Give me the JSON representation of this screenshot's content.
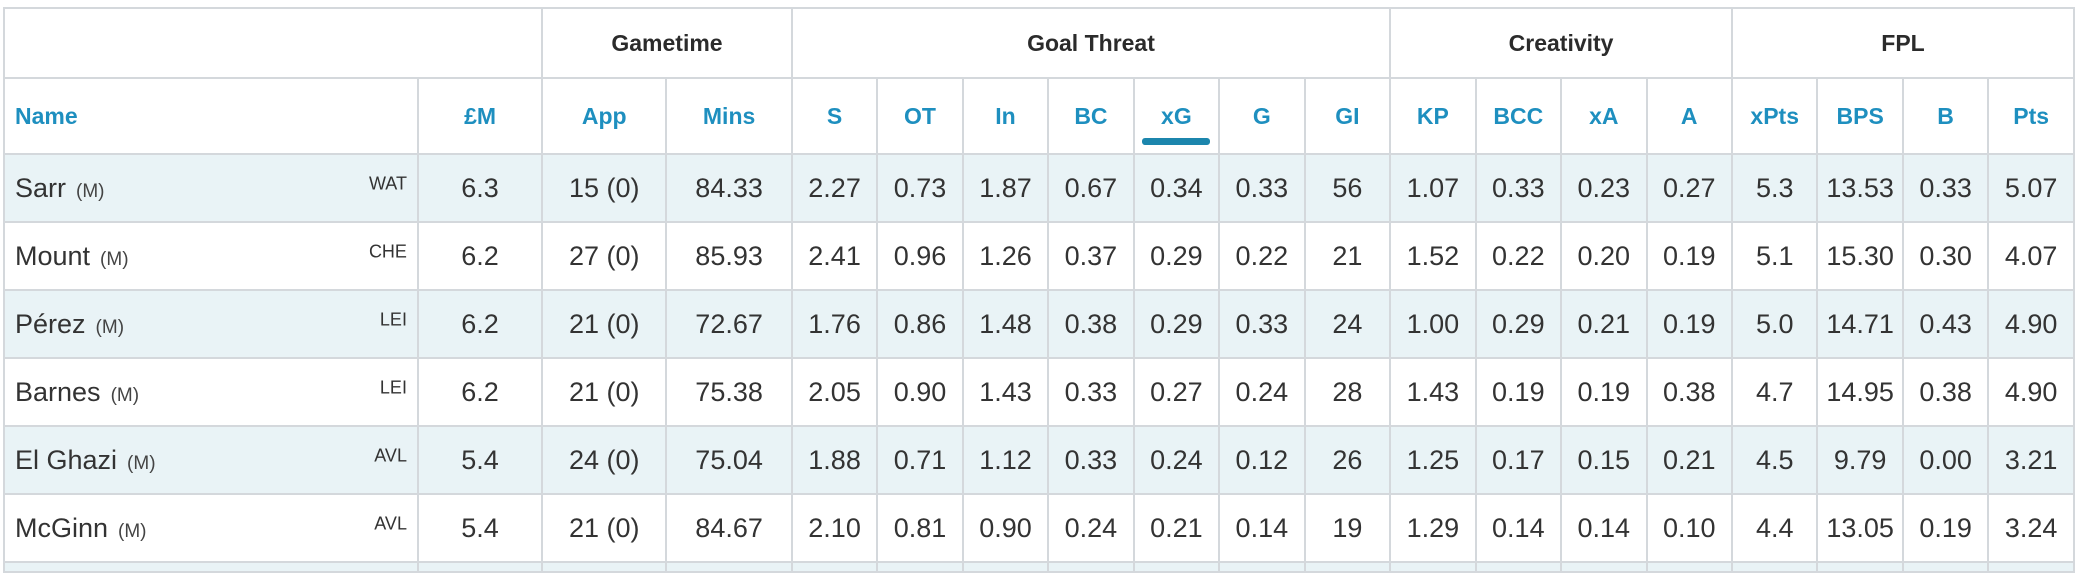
{
  "groups": {
    "blank": "",
    "gametime": "Gametime",
    "goal_threat": "Goal Threat",
    "creativity": "Creativity",
    "fpl": "FPL"
  },
  "columns": {
    "name": "Name",
    "price": "£M",
    "app": "App",
    "mins": "Mins",
    "s": "S",
    "ot": "OT",
    "in": "In",
    "bc": "BC",
    "xg": "xG",
    "g": "G",
    "gi": "GI",
    "kp": "KP",
    "bcc": "BCC",
    "xa": "xA",
    "a": "A",
    "xpts": "xPts",
    "bps": "BPS",
    "b": "B",
    "pts": "Pts"
  },
  "sorted_column": "xG",
  "sort_indicator_color": "#1c86ad",
  "header_link_color": "#1e8fbf",
  "striped_row_color": "#e9f3f6",
  "rows": [
    {
      "name": "Sarr",
      "pos": "(M)",
      "team": "WAT",
      "price": "6.3",
      "app": "15 (0)",
      "mins": "84.33",
      "s": "2.27",
      "ot": "0.73",
      "in": "1.87",
      "bc": "0.67",
      "xg": "0.34",
      "g": "0.33",
      "gi": "56",
      "kp": "1.07",
      "bcc": "0.33",
      "xa": "0.23",
      "a": "0.27",
      "xpts": "5.3",
      "bps": "13.53",
      "b": "0.33",
      "pts": "5.07"
    },
    {
      "name": "Mount",
      "pos": "(M)",
      "team": "CHE",
      "price": "6.2",
      "app": "27 (0)",
      "mins": "85.93",
      "s": "2.41",
      "ot": "0.96",
      "in": "1.26",
      "bc": "0.37",
      "xg": "0.29",
      "g": "0.22",
      "gi": "21",
      "kp": "1.52",
      "bcc": "0.22",
      "xa": "0.20",
      "a": "0.19",
      "xpts": "5.1",
      "bps": "15.30",
      "b": "0.30",
      "pts": "4.07"
    },
    {
      "name": "Pérez",
      "pos": "(M)",
      "team": "LEI",
      "price": "6.2",
      "app": "21 (0)",
      "mins": "72.67",
      "s": "1.76",
      "ot": "0.86",
      "in": "1.48",
      "bc": "0.38",
      "xg": "0.29",
      "g": "0.33",
      "gi": "24",
      "kp": "1.00",
      "bcc": "0.29",
      "xa": "0.21",
      "a": "0.19",
      "xpts": "5.0",
      "bps": "14.71",
      "b": "0.43",
      "pts": "4.90"
    },
    {
      "name": "Barnes",
      "pos": "(M)",
      "team": "LEI",
      "price": "6.2",
      "app": "21 (0)",
      "mins": "75.38",
      "s": "2.05",
      "ot": "0.90",
      "in": "1.43",
      "bc": "0.33",
      "xg": "0.27",
      "g": "0.24",
      "gi": "28",
      "kp": "1.43",
      "bcc": "0.19",
      "xa": "0.19",
      "a": "0.38",
      "xpts": "4.7",
      "bps": "14.95",
      "b": "0.38",
      "pts": "4.90"
    },
    {
      "name": "El Ghazi",
      "pos": "(M)",
      "team": "AVL",
      "price": "5.4",
      "app": "24 (0)",
      "mins": "75.04",
      "s": "1.88",
      "ot": "0.71",
      "in": "1.12",
      "bc": "0.33",
      "xg": "0.24",
      "g": "0.12",
      "gi": "26",
      "kp": "1.25",
      "bcc": "0.17",
      "xa": "0.15",
      "a": "0.21",
      "xpts": "4.5",
      "bps": "9.79",
      "b": "0.00",
      "pts": "3.21"
    },
    {
      "name": "McGinn",
      "pos": "(M)",
      "team": "AVL",
      "price": "5.4",
      "app": "21 (0)",
      "mins": "84.67",
      "s": "2.10",
      "ot": "0.81",
      "in": "0.90",
      "bc": "0.24",
      "xg": "0.21",
      "g": "0.14",
      "gi": "19",
      "kp": "1.29",
      "bcc": "0.14",
      "xa": "0.14",
      "a": "0.10",
      "xpts": "4.4",
      "bps": "13.05",
      "b": "0.19",
      "pts": "3.24"
    }
  ]
}
